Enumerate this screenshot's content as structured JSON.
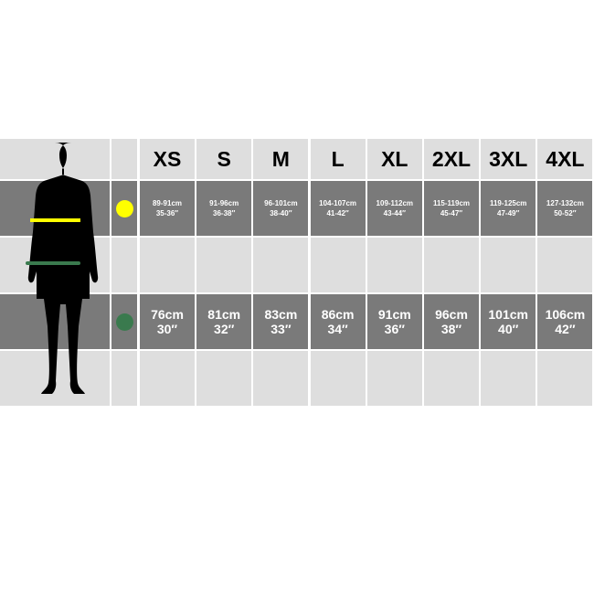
{
  "sizes": [
    "XS",
    "S",
    "M",
    "L",
    "XL",
    "2XL",
    "3XL",
    "4XL"
  ],
  "chest": {
    "marker_color": "#ffff00",
    "cm": [
      "89-91cm",
      "91-96cm",
      "96-101cm",
      "104-107cm",
      "109-112cm",
      "115-119cm",
      "119-125cm",
      "127-132cm"
    ],
    "in": [
      "35-36″",
      "36-38″",
      "38-40″",
      "41-42″",
      "43-44″",
      "45-47″",
      "47-49″",
      "50-52″"
    ]
  },
  "waist": {
    "marker_color": "#3a7a4e",
    "cm": [
      "76cm",
      "81cm",
      "83cm",
      "86cm",
      "91cm",
      "96cm",
      "101cm",
      "106cm"
    ],
    "in": [
      "30″",
      "32″",
      "33″",
      "34″",
      "36″",
      "38″",
      "40″",
      "42″"
    ]
  },
  "colors": {
    "light": "#dedede",
    "dark": "#7a7a7a"
  }
}
